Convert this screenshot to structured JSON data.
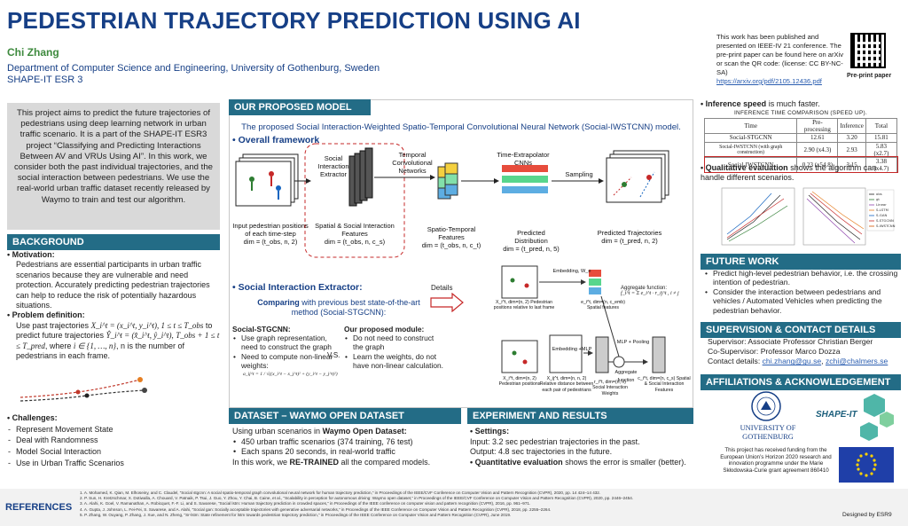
{
  "header": {
    "title": "PEDESTRIAN TRAJECTORY PREDICTION USING AI",
    "author": "Chi Zhang",
    "dept": "Department of Computer Science and Engineering, University of Gothenburg, Sweden",
    "role": "SHAPE-IT ESR 3"
  },
  "publication": {
    "text": "This work has been published and presented on IEEE-IV 21 conference. The pre-print paper can be found here on arXiv or scan the QR code: (license: CC BY-NC-SA)",
    "link": "https://arxiv.org/pdf/2105.12436.pdf",
    "qr_caption": "Pre-print paper"
  },
  "intro": "This project aims to predict the future trajectories of pedestrians using deep learning network in urban traffic scenario. It is a part of the SHAPE-IT ESR3 project “Classifying and Predicting Interactions Between AV and VRUs Using AI”. In this work, we consider both the past individual trajectories, and the social interaction between pedestrians. We use the real-world urban traffic dataset recently released by Waymo to train and test our algorithm.",
  "background": {
    "header": "BACKGROUND",
    "motivation_label": "Motivation:",
    "motivation": "Pedestrians are essential participants in urban traffic scenarios because they are vulnerable and need protection. Accurately predicting pedestrian trajectories can help to reduce the risk of potentially hazardous situations.",
    "problem_label": "Problem definition:",
    "problem_1": "Use past trajectories",
    "problem_m1": "X_i^t = (x_i^t, y_i^t), 1 ≤ t ≤ T_obs",
    "problem_2": "to predict future trajectories",
    "problem_m2": "Ŷ_i^t = (x̂_i^t, ŷ_i^t),",
    "problem_m3": "T_obs + 1 ≤ t ≤ T_pred",
    "problem_3": ", where",
    "problem_m4": "i ∈ {1, …, n}",
    "problem_4": ", n is the number of pedestrians in each frame.",
    "challenges_label": "Challenges:",
    "challenges": [
      "Represent Movement State",
      "Deal with Randomness",
      "Model Social Interaction",
      "Use in Urban Traffic Scenarios"
    ]
  },
  "model": {
    "header": "OUR PROPOSED MODEL",
    "subtitle": "The proposed Social Interaction-Weighted Spatio-Temporal Convolutional Neural Network (Social-IWSTCNN) model.",
    "framework_label": "Overall framework",
    "fw": {
      "sie": "Social Interaction Extractor",
      "tcn": "Temporal Convolutional Networks",
      "tx": "Time-Extrapolator CNNs",
      "sampling": "Sampling",
      "c1": "Input pedestrian positions of each time-step",
      "c1d": "dim = (t_obs, n, 2)",
      "c2": "Spatial & Social Interaction Features",
      "c2d": "dim = (t_obs, n, c_s)",
      "c3": "Spatio-Temporal Features",
      "c3d": "dim = (t_obs, n, c_t)",
      "c4": "Predicted Distribution",
      "c4d": "dim = (t_pred, n, 5)",
      "c5": "Predicted Trajectories",
      "c5d": "dim = (t_pred, n, 2)"
    },
    "sie_label": "Social Interaction Extractor:",
    "compare_bold": "Comparing",
    "compare": "with previous best state-of-the-art method (Social-STGCNN):",
    "details": "Details",
    "sgt_label": "Social-STGCNN:",
    "sgt": [
      "Use graph representation, need to construct the graph",
      "Need to compute non-linear weights:"
    ],
    "sgt_formula": "a_ij^t = 1 / √((x_i^t − x_j^t)² + (y_i^t − y_j^t)²)",
    "vs": "V.S.",
    "opm_label": "Our proposed module:",
    "opm": [
      "Do not need to construct the graph",
      "Learn the weights, do not have non-linear calculation."
    ],
    "det": {
      "emb1": "Embedding, W_e",
      "emb2": "Embedding +MLP",
      "mlp": "MLP + Pooling",
      "agg": "Aggregate function",
      "aggf": "Aggregate function:",
      "aggfm": "f_i^t = Σ e_i^t · r_ij^t , i ≠ j",
      "d1": "X_i^t, dim=(n, 2) Pedestrian positions relative to last frame",
      "d2": "e_i^t, dim=(n, c_emb) Spatial features",
      "d3": "X_i^t, dim=(n, 2) Pedestrian positions",
      "d4": "X_ij^t, dim=(n, n, 2) Relative distance between each pair of pedestrians",
      "d5": "r_i^t, dim=(n, n) Social Interaction Weights",
      "d6": "c_i^t, dim=(n, c_s) Spatial & Social Interaction Features"
    }
  },
  "dataset": {
    "header": "DATASET – WAYMO OPEN DATASET",
    "intro_a": "Using urban scenarios in ",
    "intro_b": "Waymo Open Dataset:",
    "items": [
      "450 urban traffic scenarios (374 training, 76 test)",
      "Each spans 20 seconds, in real-world traffic"
    ],
    "retrained_a": "In this work, we ",
    "retrained_b": "RE-TRAINED",
    "retrained_c": " all the compared models."
  },
  "experiment": {
    "header": "EXPERIMENT AND RESULTS",
    "settings": "Settings:",
    "input": "Input: 3.2 sec pedestrian trajectories in the past.",
    "output": "Output: 4.8 sec trajectories in the future.",
    "quant_b": "Quantitative evaluation",
    "quant": " shows the error is smaller (better)."
  },
  "inference": {
    "label_b": "Inference speed",
    "label": " is much faster.",
    "caption": "INFERENCE TIME COMPARISON (SPEED UP).",
    "cols": [
      "Time",
      "Pre-processing",
      "Inference",
      "Total"
    ],
    "rows": [
      [
        "Social-STGCNN",
        "12.61",
        "3.20",
        "15.81"
      ],
      [
        "Social-IWSTCNN (with graph construction)",
        "2.90 (x4.3)",
        "2.93",
        "5.83 (x2.7)"
      ],
      [
        "Social-IWSTCNN",
        "0.23 (x54.8)",
        "3.15",
        "3.38 (x4.7)"
      ]
    ]
  },
  "qualitative": {
    "label_b": "Qualitative evaluation",
    "label": " shows the algorithm can handle different scenarios.",
    "legend": [
      "obs",
      "gt",
      "Linear",
      "S-LSTM",
      "S-GAN",
      "S-STGCNN",
      "S-IWSTCNN"
    ]
  },
  "future": {
    "header": "FUTURE WORK",
    "items": [
      "Predict high-level pedestrian behavior, i.e. the crossing intention of pedestrian.",
      "Consider the interaction between pedestrians and vehicles / Automated Vehicles when predicting the pedestrian behavior."
    ]
  },
  "contact": {
    "header": "SUPERVISION & CONTACT DETAILS",
    "supervisor": "Supervisor: Associate Professor Christian Berger",
    "cosupervisor": "Co-Supervisor: Professor Marco Dozza",
    "contact_label": "Contact details: ",
    "email1": "chi.zhang@gu.se",
    "sep": ", ",
    "email2": "zchi@chalmers.se"
  },
  "affiliations": {
    "header": "AFFILIATIONS & ACKNOWLEDGEMENT",
    "uni1": "UNIVERSITY OF",
    "uni2": "GOTHENBURG",
    "shapeit": "SHAPE-IT",
    "eu": "This project has received funding from the European Union’s Horizon 2020 research and innovation programme under the Marie Skłodowska-Curie grant agreement 860410"
  },
  "references": {
    "label": "REFERENCES",
    "items": [
      "1.  A. Mohamed, K. Qian, M. Elhoseiny, and C. Claudel, “Social stgcnn: A social spatio-temporal graph convolutional neural network for human trajectory prediction,” in Proceedings of the IEEE/CVF Conference on Computer Vision and Pattern Recognition (CVPR), 2020, pp. 14 424–14 432.",
      "2.  P. Sun, H. Kretzschmar, X. Dotiwalla, A. Chouard, V. Patnaik, P. Tsui, J. Guo, Y. Zhou, Y. Chai, B. Caine, et al., “Scalability in perception for autonomous driving: Waymo open dataset,” in Proceedings of the IEEE/CVF Conference on Computer Vision and Pattern Recognition (CVPR), 2020, pp. 2446–2454.",
      "3.  A. Alahi, K. Goel, V. Ramanathan, A. Robicquet, F.-F. Li, and S. Savarese, “Social lstm: Human trajectory prediction in crowded spaces,” in Proceedings of the IEEE conference on computer vision and pattern recognition (CVPR), 2016, pp. 961–971.",
      "4.  A. Gupta, J. Johnson, L. Fei-Fei, S. Savarese, and A. Alahi, “Social gan: Socially acceptable trajectories with generative adversarial networks,” in Proceedings of the IEEE Conference on Computer Vision and Pattern Recognition (CVPR), 2018, pp. 2255–2264.",
      "5.  P. Zhang, W. Ouyang, P. Zhang, J. Xue, and N. Zheng, “Sr-lstm: State refinement for lstm towards pedestrian trajectory prediction,” in Proceedings of the IEEE Conference on Computer Vision and Pattern Recognition (CVPR), June 2019."
    ],
    "designed": "Designed by ESR9"
  },
  "colors": {
    "primary": "#163f86",
    "header_bg": "#236c86",
    "accent_green": "#3e8a3e"
  }
}
